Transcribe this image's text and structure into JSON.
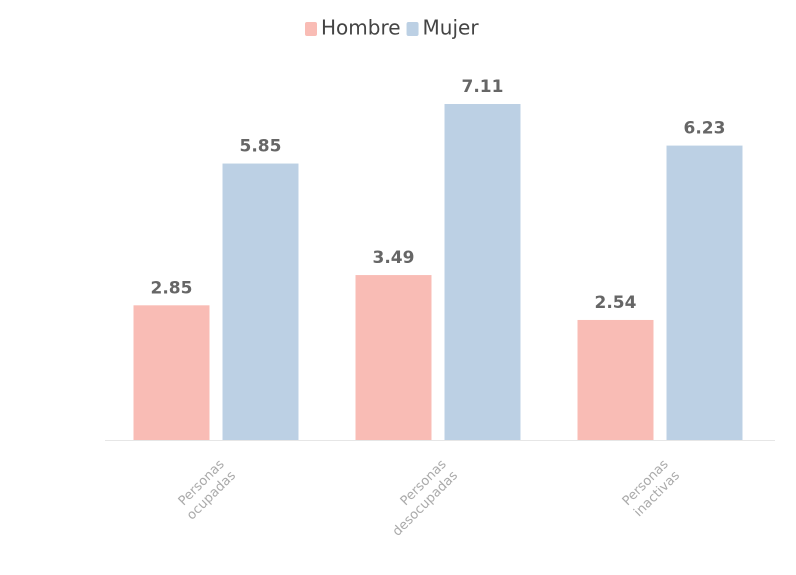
{
  "chart_data": {
    "type": "bar",
    "categories": [
      "Personas ocupadas",
      "Personas desocupadas",
      "Personas inactivas"
    ],
    "series": [
      {
        "name": "Hombre",
        "color": "#f9bcb5",
        "values": [
          2.85,
          3.49,
          2.54
        ]
      },
      {
        "name": "Mujer",
        "color": "#bcd0e4",
        "values": [
          5.85,
          7.11,
          6.23
        ]
      }
    ],
    "legend": "top"
  }
}
